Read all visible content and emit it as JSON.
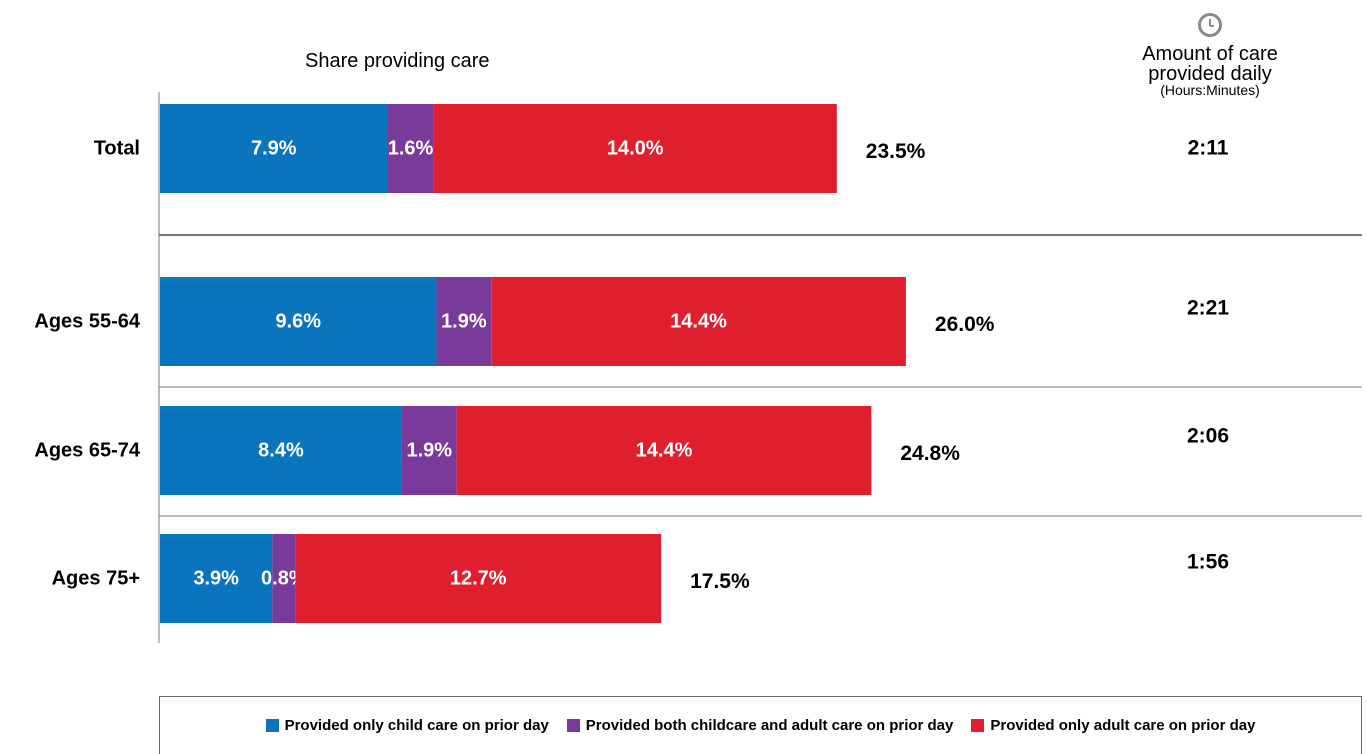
{
  "header": {
    "share_title": "Share providing care",
    "care_title_line1": "Amount of care",
    "care_title_line2": "provided daily",
    "care_title_unit": "(Hours:Minutes)",
    "care_icon": "clock-icon"
  },
  "colors": {
    "child": "#0a74bd",
    "both": "#7a3a9a",
    "adult": "#df1f2d",
    "axis": "#777777",
    "clock": "#8a8a8a"
  },
  "legend": [
    {
      "label": "Provided only child care on prior day",
      "color": "#0a74bd"
    },
    {
      "label": "Provided both childcare and adult care on prior day",
      "color": "#7a3a9a"
    },
    {
      "label": "Provided only adult care on prior day",
      "color": "#df1f2d"
    }
  ],
  "chart_data": {
    "type": "bar",
    "orientation": "horizontal",
    "stacked": true,
    "categories": [
      "Total",
      "Ages 55-64",
      "Ages 65-74",
      "Ages 75+"
    ],
    "series": [
      {
        "name": "Provided only child care on prior day",
        "values": [
          7.9,
          9.6,
          8.4,
          3.9
        ],
        "labels": [
          "7.9%",
          "9.6%",
          "8.4%",
          "3.9%"
        ]
      },
      {
        "name": "Provided both childcare and adult care on prior day",
        "values": [
          1.6,
          1.9,
          1.9,
          0.8
        ],
        "labels": [
          "1.6%",
          "1.9%",
          "1.9%",
          "0.8%"
        ]
      },
      {
        "name": "Provided only adult care on prior day",
        "values": [
          14.0,
          14.4,
          14.4,
          12.7
        ],
        "labels": [
          "14.0%",
          "14.4%",
          "14.4%",
          "12.7%"
        ]
      }
    ],
    "totals": [
      "23.5%",
      "26.0%",
      "24.8%",
      "17.5%"
    ],
    "care_time": [
      "2:11",
      "2:21",
      "2:06",
      "1:56"
    ],
    "xlim": [
      0,
      26
    ],
    "grid": false,
    "legend_position": "bottom"
  }
}
